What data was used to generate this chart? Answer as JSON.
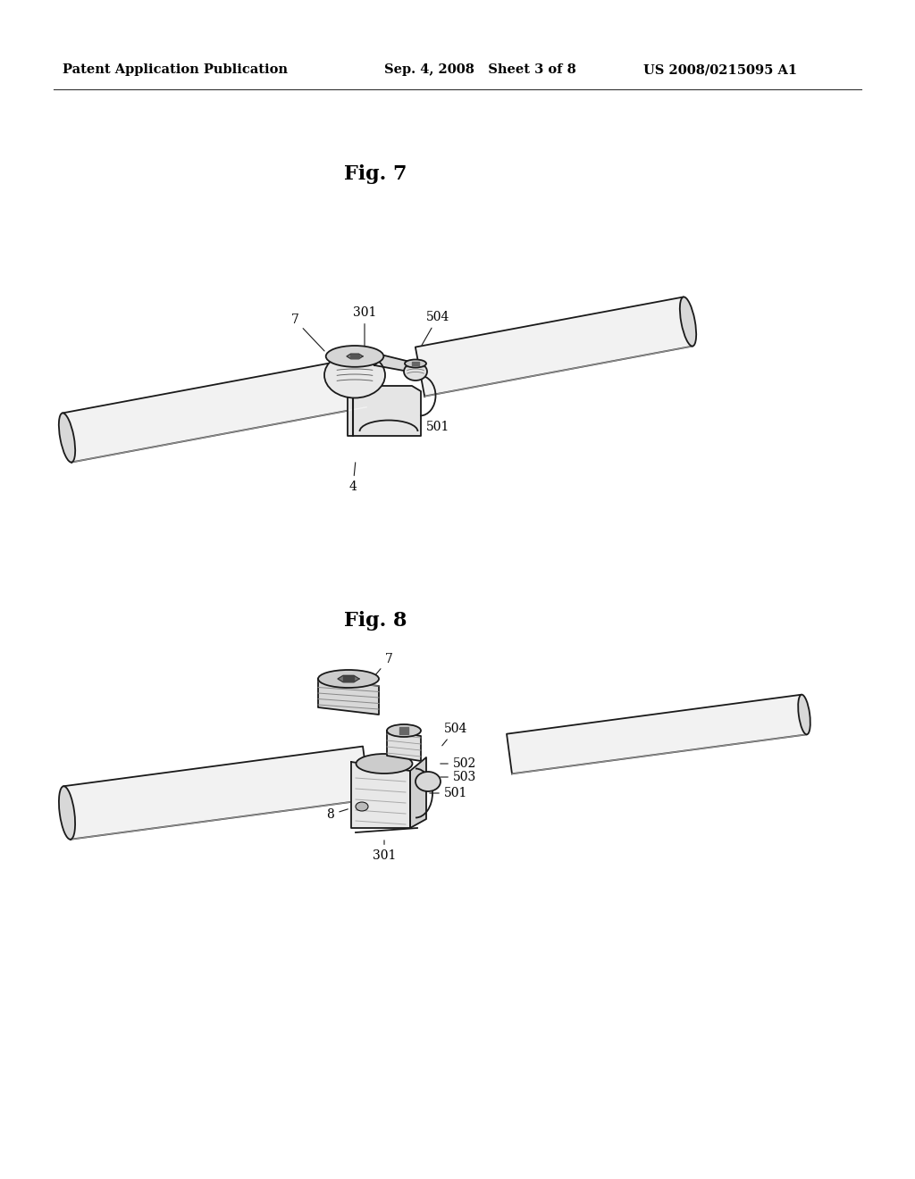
{
  "background_color": "#ffffff",
  "page_width": 10.24,
  "page_height": 13.2,
  "header": {
    "left": "Patent Application Publication",
    "center": "Sep. 4, 2008   Sheet 3 of 8",
    "right": "US 2008/0215095 A1",
    "fontsize": 10.5
  },
  "fig7": {
    "title": "Fig. 7"
  },
  "fig8": {
    "title": "Fig. 8"
  }
}
